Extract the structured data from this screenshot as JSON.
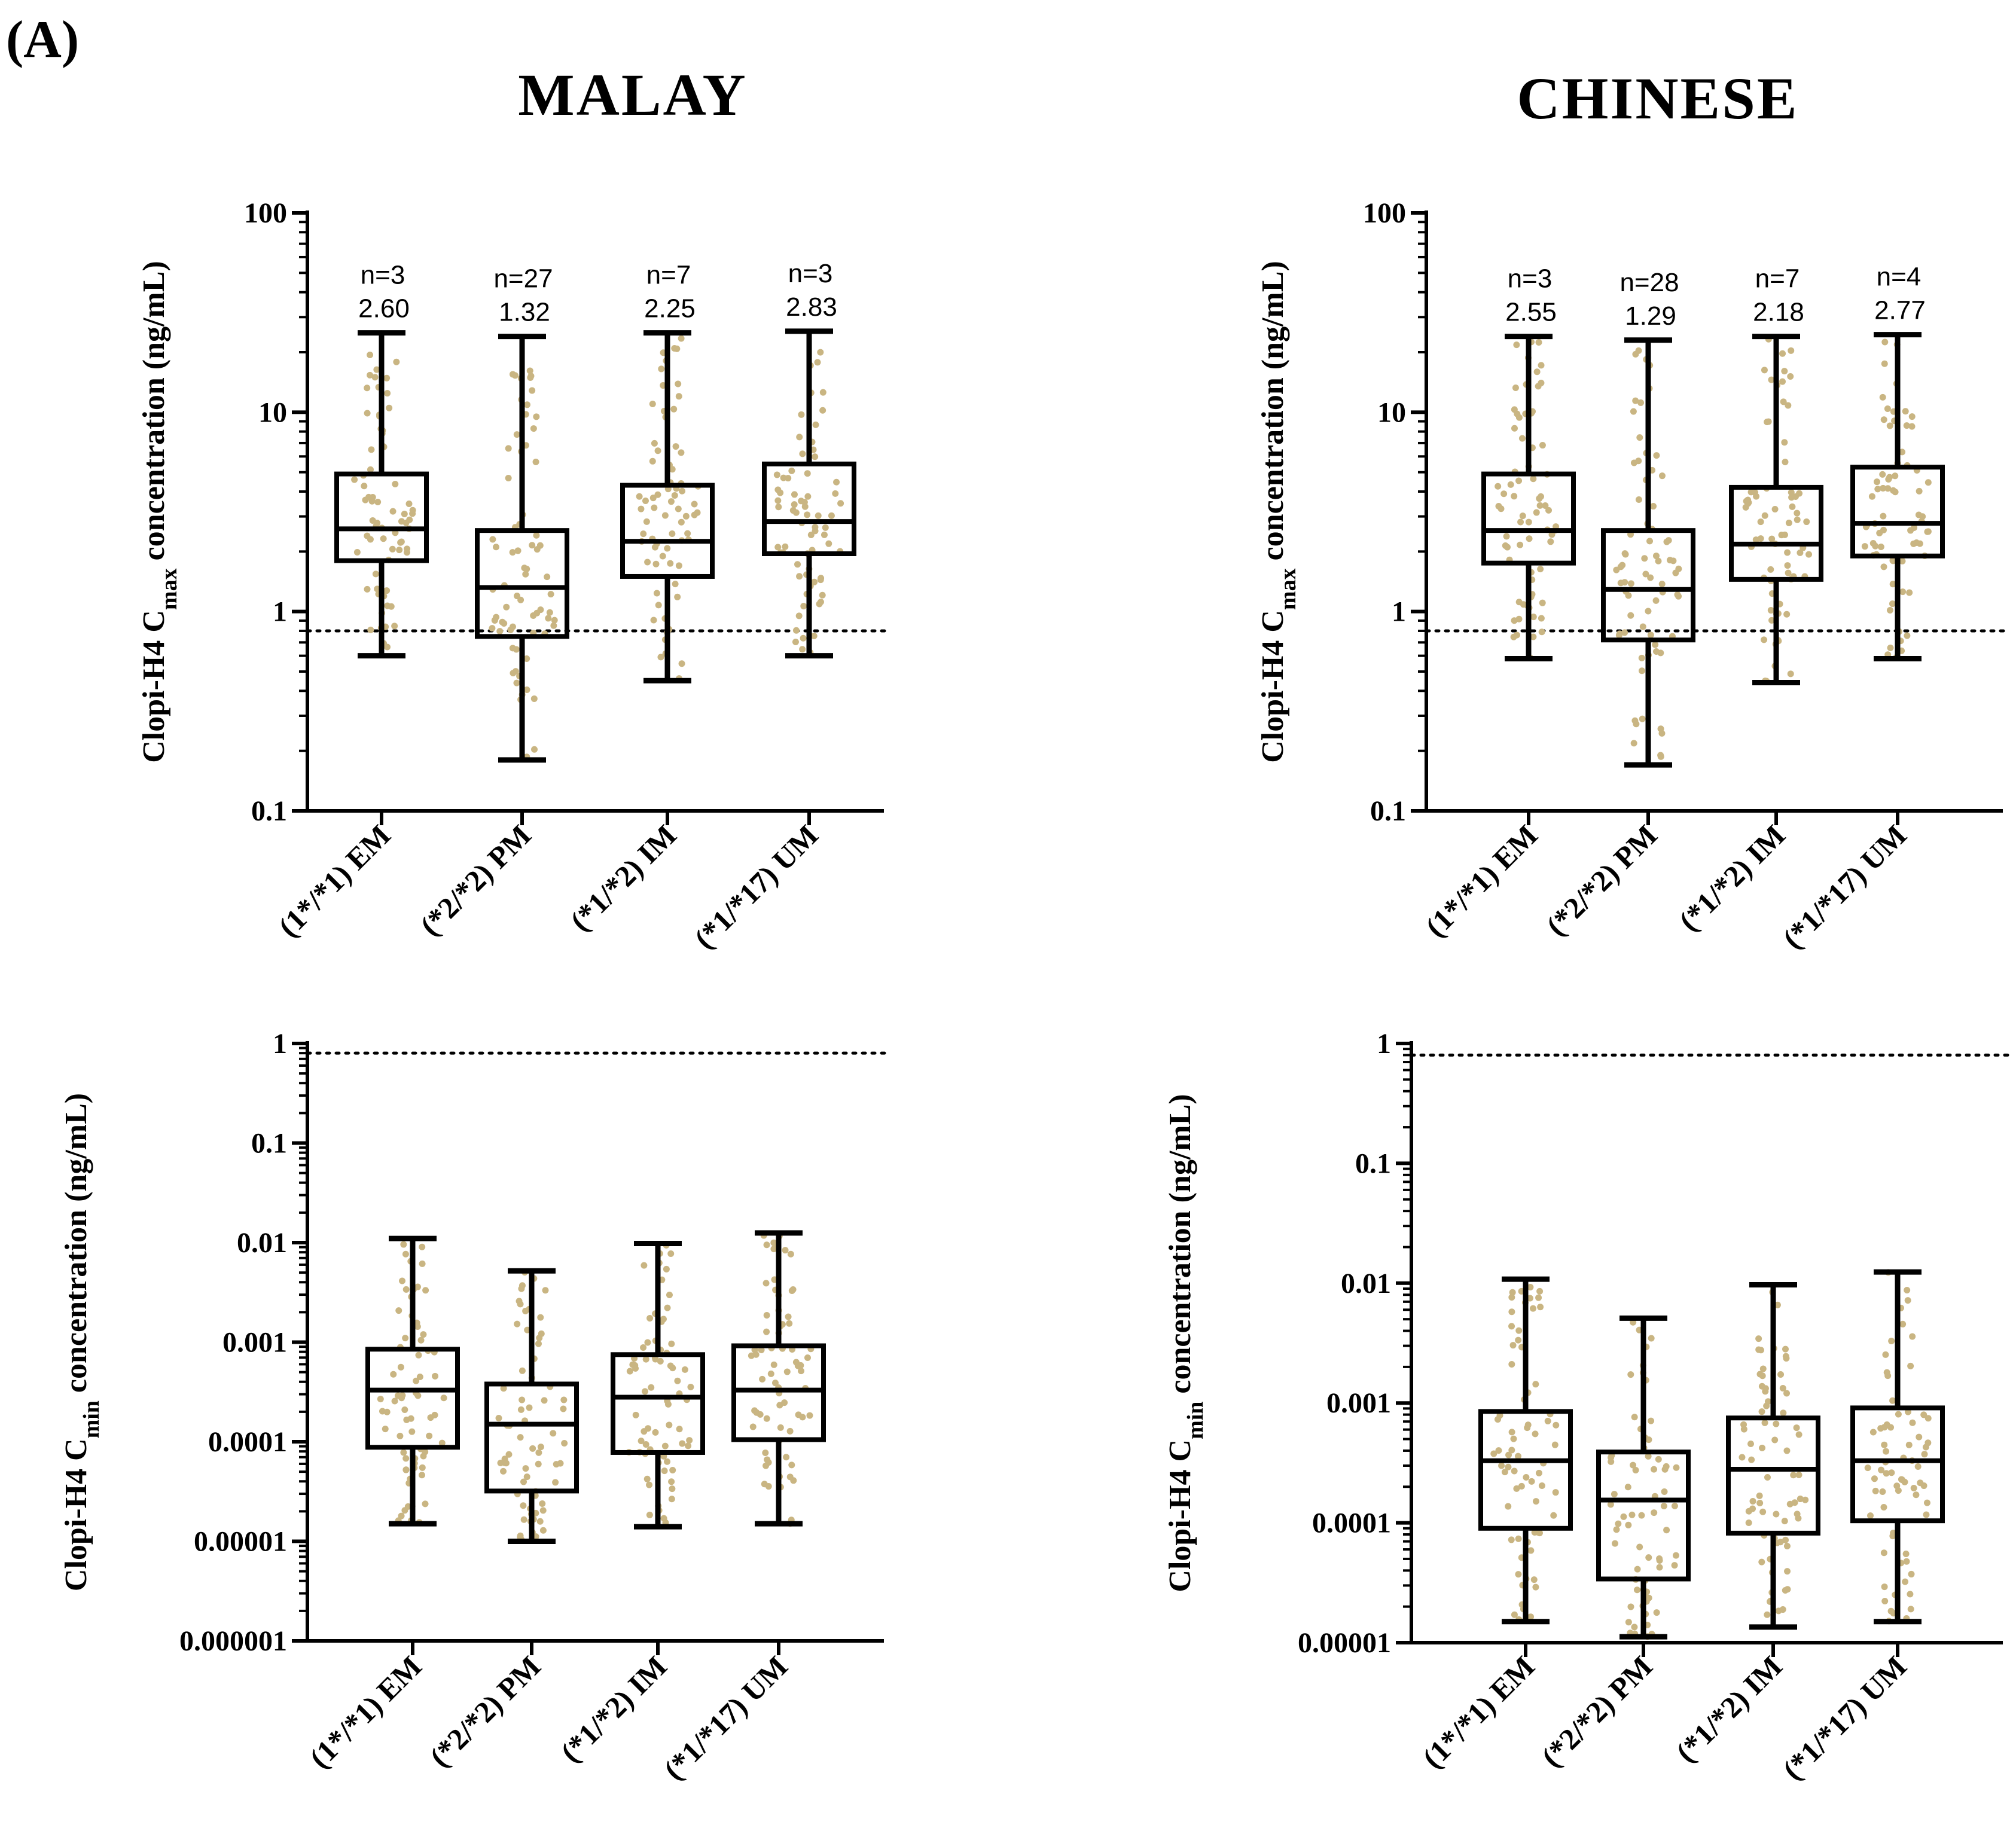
{
  "panel_label": "(A)",
  "column_titles": [
    "MALAY",
    "CHINESE"
  ],
  "colors": {
    "box": "#000000",
    "points": "#c9b582",
    "reference_line": "#000000"
  },
  "chart_data": [
    {
      "id": "malay-cmax",
      "type": "box",
      "column": "MALAY",
      "ylabel_prefix": "Clopi-H4 C",
      "ylabel_sub": "max",
      "ylabel_suffix": " concentration  (ng/mL)",
      "yscale": "log",
      "ylim": [
        0.1,
        100
      ],
      "yticks": [
        0.1,
        1,
        10,
        100
      ],
      "ytick_labels": [
        "0.1",
        "1",
        "10",
        "100"
      ],
      "reference_line": 0.8,
      "categories": [
        "(1*/*1) EM",
        "(*2/*2) PM",
        "(*1/*2) IM",
        "(*1/*17) UM"
      ],
      "boxes": [
        {
          "min": 0.6,
          "q1": 1.8,
          "median": 2.6,
          "q3": 4.9,
          "max": 25
        },
        {
          "min": 0.18,
          "q1": 0.75,
          "median": 1.32,
          "q3": 2.55,
          "max": 24
        },
        {
          "min": 0.45,
          "q1": 1.5,
          "median": 2.25,
          "q3": 4.3,
          "max": 25
        },
        {
          "min": 0.6,
          "q1": 1.95,
          "median": 2.83,
          "q3": 5.5,
          "max": 25.5
        }
      ],
      "annotations": [
        {
          "n": "n=3",
          "value": "2.60"
        },
        {
          "n": "n=27",
          "value": "1.32"
        },
        {
          "n": "n=7",
          "value": "2.25"
        },
        {
          "n": "n=3",
          "value": "2.83"
        }
      ]
    },
    {
      "id": "chinese-cmax",
      "type": "box",
      "column": "CHINESE",
      "ylabel_prefix": "Clopi-H4 C",
      "ylabel_sub": "max",
      "ylabel_suffix": " concentration  (ng/mL)",
      "yscale": "log",
      "ylim": [
        0.1,
        100
      ],
      "yticks": [
        0.1,
        1,
        10,
        100
      ],
      "ytick_labels": [
        "0.1",
        "1",
        "10",
        "100"
      ],
      "reference_line": 0.8,
      "categories": [
        "(1*/*1) EM",
        "(*2/*2) PM",
        "(*1/*2) IM",
        "(*1/*17) UM"
      ],
      "boxes": [
        {
          "min": 0.58,
          "q1": 1.75,
          "median": 2.55,
          "q3": 4.9,
          "max": 24
        },
        {
          "min": 0.17,
          "q1": 0.72,
          "median": 1.29,
          "q3": 2.55,
          "max": 23
        },
        {
          "min": 0.44,
          "q1": 1.45,
          "median": 2.18,
          "q3": 4.2,
          "max": 24
        },
        {
          "min": 0.58,
          "q1": 1.9,
          "median": 2.77,
          "q3": 5.3,
          "max": 24.5
        }
      ],
      "annotations": [
        {
          "n": "n=3",
          "value": "2.55"
        },
        {
          "n": "n=28",
          "value": "1.29"
        },
        {
          "n": "n=7",
          "value": "2.18"
        },
        {
          "n": "n=4",
          "value": "2.77"
        }
      ]
    },
    {
      "id": "malay-cmin",
      "type": "box",
      "column": "MALAY",
      "ylabel_prefix": "Clopi-H4 C",
      "ylabel_sub": "min",
      "ylabel_suffix": " concentration  (ng/mL)",
      "yscale": "log",
      "ylim": [
        1e-06,
        1
      ],
      "yticks": [
        1e-06,
        1e-05,
        0.0001,
        0.001,
        0.01,
        0.1,
        1
      ],
      "ytick_labels": [
        "0.000001",
        "0.00001",
        "0.0001",
        "0.001",
        "0.01",
        "0.1",
        "1"
      ],
      "reference_line": 0.8,
      "categories": [
        "(1*/*1) EM",
        "(*2/*2) PM",
        "(*1/*2) IM",
        "(*1/*17) UM"
      ],
      "boxes": [
        {
          "min": 1.5e-05,
          "q1": 8.8e-05,
          "median": 0.00033,
          "q3": 0.00085,
          "max": 0.011
        },
        {
          "min": 1e-05,
          "q1": 3.2e-05,
          "median": 0.00015,
          "q3": 0.00038,
          "max": 0.0052
        },
        {
          "min": 1.4e-05,
          "q1": 7.8e-05,
          "median": 0.00028,
          "q3": 0.00075,
          "max": 0.0098
        },
        {
          "min": 1.5e-05,
          "q1": 0.000105,
          "median": 0.00033,
          "q3": 0.00092,
          "max": 0.0125
        }
      ],
      "annotations": []
    },
    {
      "id": "chinese-cmin",
      "type": "box",
      "column": "CHINESE",
      "ylabel_prefix": "Clopi-H4 C",
      "ylabel_sub": "min",
      "ylabel_suffix": " concentration  (ng/mL)",
      "yscale": "log",
      "ylim": [
        1e-05,
        1
      ],
      "yticks": [
        1e-05,
        0.0001,
        0.001,
        0.01,
        0.1,
        1
      ],
      "ytick_labels": [
        "0.00001",
        "0.0001",
        "0.001",
        "0.01",
        "0.1",
        "1"
      ],
      "reference_line": 0.8,
      "categories": [
        "(1*/*1) EM",
        "(*2/*2) PM",
        "(*1/*2) IM",
        "(*1/*17) UM"
      ],
      "boxes": [
        {
          "min": 1.5e-05,
          "q1": 9e-05,
          "median": 0.00033,
          "q3": 0.00085,
          "max": 0.0108
        },
        {
          "min": 1.12e-05,
          "q1": 3.4e-05,
          "median": 0.000155,
          "q3": 0.00039,
          "max": 0.0051
        },
        {
          "min": 1.35e-05,
          "q1": 8.2e-05,
          "median": 0.00028,
          "q3": 0.00075,
          "max": 0.0097
        },
        {
          "min": 1.5e-05,
          "q1": 0.000104,
          "median": 0.00033,
          "q3": 0.00091,
          "max": 0.0124
        }
      ],
      "annotations": []
    }
  ]
}
